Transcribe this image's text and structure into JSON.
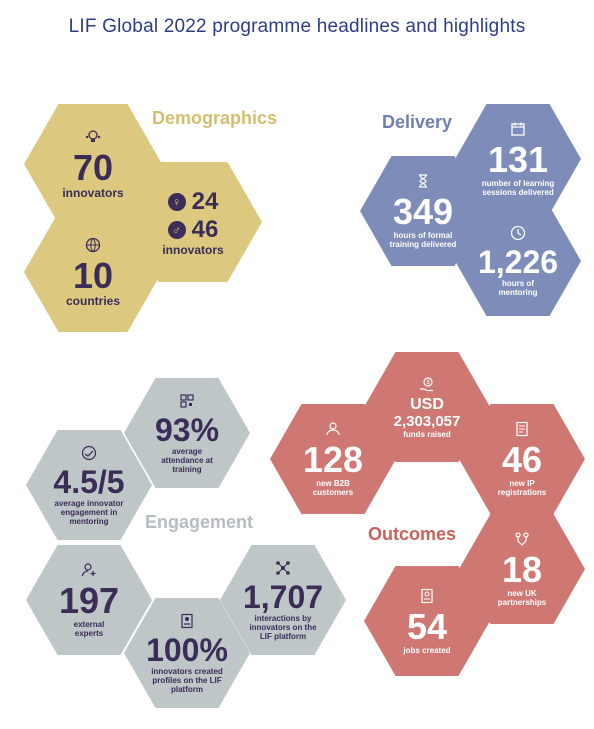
{
  "title": "LIF Global 2022 programme headlines and highlights",
  "demographics": {
    "heading": "Demographics",
    "innovators": {
      "value": "70",
      "label": "innovators"
    },
    "gender": {
      "female": "24",
      "male": "46",
      "label": "innovators"
    },
    "countries": {
      "value": "10",
      "label": "countries"
    }
  },
  "delivery": {
    "heading": "Delivery",
    "sessions": {
      "value": "131",
      "label": "number of learning sessions delivered"
    },
    "training_hours": {
      "value": "349",
      "label": "hours of formal training delivered"
    },
    "mentoring_hours": {
      "value": "1,226",
      "label": "hours of mentoring"
    }
  },
  "engagement": {
    "heading": "Engagement",
    "attendance": {
      "value": "93%",
      "label": "average attendance at training"
    },
    "rating": {
      "value": "4.5/5",
      "label": "average innovator engagement in mentoring"
    },
    "experts": {
      "value": "197",
      "label": "external experts"
    },
    "profiles": {
      "value": "100%",
      "label": "innovators created profiles on the LIF platform"
    },
    "interactions": {
      "value": "1,707",
      "label": "interactions by innovators on the LIF platform"
    }
  },
  "outcomes": {
    "heading": "Outcomes",
    "funds": {
      "currency": "USD",
      "value": "2,303,057",
      "label": "funds raised"
    },
    "customers": {
      "value": "128",
      "label": "new B2B customers"
    },
    "ip": {
      "value": "46",
      "label": "new IP registrations"
    },
    "partnerships": {
      "value": "18",
      "label": "new UK partnerships"
    },
    "jobs": {
      "value": "54",
      "label": "jobs created"
    }
  },
  "icons": {
    "innovators": "lightbulb-people-icon",
    "countries": "globe-icon",
    "sessions": "calendar-icon",
    "training": "hourglass-icon",
    "mentoring": "clock-icon",
    "attendance": "qr-code-icon",
    "rating": "handshake-icon",
    "experts": "person-add-icon",
    "profiles": "profile-card-icon",
    "interactions": "network-icon",
    "funds": "money-hand-icon",
    "customers": "customer-icon",
    "ip": "document-icon",
    "partnerships": "partnership-icon",
    "jobs": "resume-icon"
  },
  "colors": {
    "title": "#2e3c8c",
    "demographics": "#dcc87e",
    "delivery": "#7d8cb8",
    "engagement": "#bfc6c8",
    "outcomes": "#cf7772",
    "dark_text": "#3a2d57"
  }
}
